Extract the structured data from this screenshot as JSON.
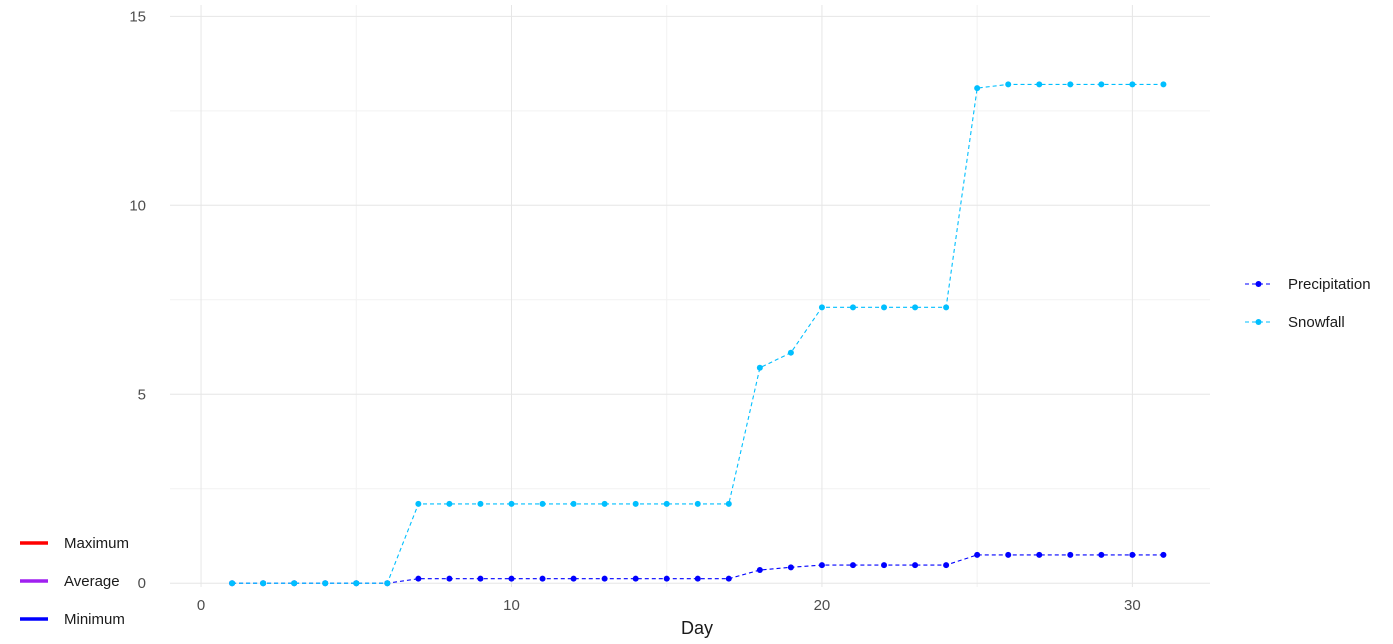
{
  "chart_data": {
    "type": "line",
    "title": "",
    "xlabel": "Day",
    "ylabel": "",
    "xlim": [
      -1,
      32.5
    ],
    "ylim": [
      -0.1,
      15.3
    ],
    "x_ticks": [
      0,
      10,
      20,
      30
    ],
    "y_ticks": [
      0,
      5,
      10,
      15
    ],
    "grid": true,
    "line_style": "dashed",
    "legend_placement": "right",
    "series": [
      {
        "name": "Precipitation",
        "color": "#0000ff",
        "x": [
          1,
          2,
          3,
          4,
          5,
          6,
          7,
          8,
          9,
          10,
          11,
          12,
          13,
          14,
          15,
          16,
          17,
          18,
          19,
          20,
          21,
          22,
          23,
          24,
          25,
          26,
          27,
          28,
          29,
          30,
          31
        ],
        "values": [
          0,
          0,
          0,
          0,
          0,
          0,
          0.12,
          0.12,
          0.12,
          0.12,
          0.12,
          0.12,
          0.12,
          0.12,
          0.12,
          0.12,
          0.12,
          0.35,
          0.42,
          0.48,
          0.48,
          0.48,
          0.48,
          0.48,
          0.75,
          0.75,
          0.75,
          0.75,
          0.75,
          0.75,
          0.75
        ]
      },
      {
        "name": "Snowfall",
        "color": "#00bfff",
        "x": [
          1,
          2,
          3,
          4,
          5,
          6,
          7,
          8,
          9,
          10,
          11,
          12,
          13,
          14,
          15,
          16,
          17,
          18,
          19,
          20,
          21,
          22,
          23,
          24,
          25,
          26,
          27,
          28,
          29,
          30,
          31
        ],
        "values": [
          0,
          0,
          0,
          0,
          0,
          0,
          2.1,
          2.1,
          2.1,
          2.1,
          2.1,
          2.1,
          2.1,
          2.1,
          2.1,
          2.1,
          2.1,
          5.7,
          6.1,
          7.3,
          7.3,
          7.3,
          7.3,
          7.3,
          13.1,
          13.2,
          13.2,
          13.2,
          13.2,
          13.2,
          13.2
        ]
      }
    ],
    "extra_legend": [
      {
        "label": "Maximum",
        "color": "#ff0000"
      },
      {
        "label": "Average",
        "color": "#a020f0"
      },
      {
        "label": "Minimum",
        "color": "#0000ff"
      }
    ]
  }
}
